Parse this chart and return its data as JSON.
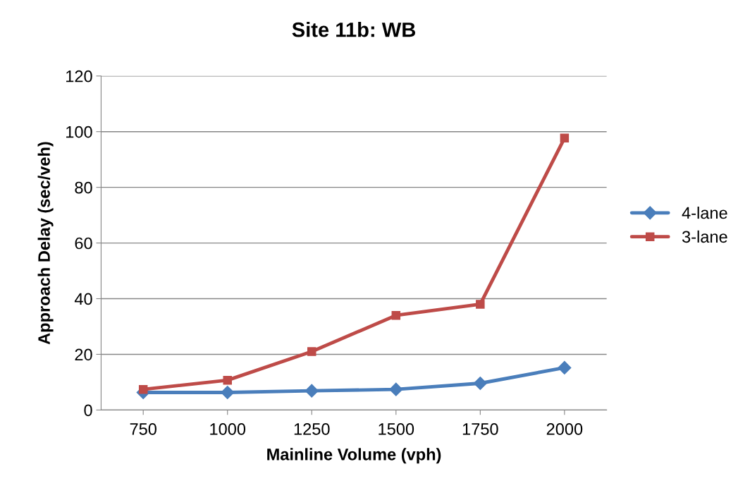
{
  "chart_data": {
    "type": "line",
    "title": "Site 11b: WB",
    "xlabel": "Mainline Volume (vph)",
    "ylabel": "Approach Delay (sec/veh)",
    "categories": [
      "750",
      "1000",
      "1250",
      "1500",
      "1750",
      "2000"
    ],
    "series": [
      {
        "name": "4-lane",
        "color": "#4a7ebb",
        "marker": "diamond",
        "values": [
          6.3,
          6.3,
          6.9,
          7.4,
          9.6,
          15.2
        ]
      },
      {
        "name": "3-lane",
        "color": "#be4b48",
        "marker": "square",
        "values": [
          7.4,
          10.7,
          21,
          34,
          38,
          97.7
        ]
      }
    ],
    "ylim": [
      0,
      120
    ],
    "yticks": [
      0,
      20,
      40,
      60,
      80,
      100,
      120
    ],
    "grid": "y",
    "legend": "right",
    "line_style": "solid"
  }
}
